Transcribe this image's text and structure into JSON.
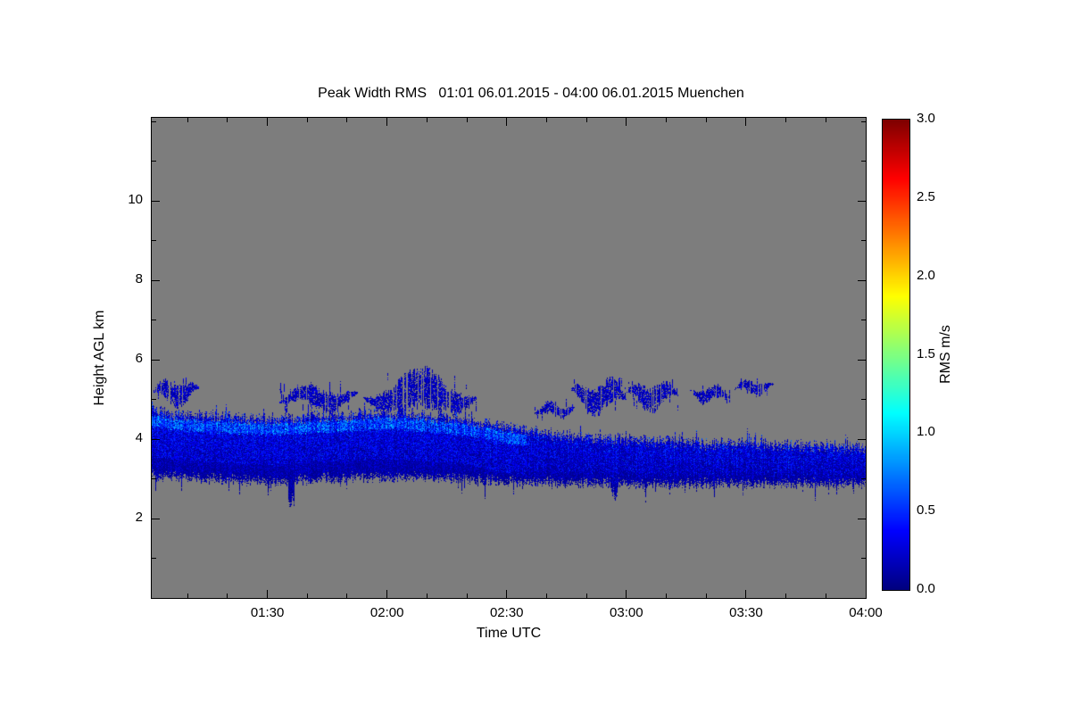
{
  "chart_data": {
    "type": "heatmap",
    "title": "Peak Width RMS   01:01 06.01.2015 - 04:00 06.01.2015 Muenchen",
    "xlabel": "Time UTC",
    "ylabel": "Height AGL km",
    "colorbar_label": "RMS m/s",
    "colormap": "jet",
    "nodata_color": "#7d7d7d",
    "frame_color": "#000000",
    "text_color": "#000000",
    "x_range": {
      "start_minutes": 61,
      "end_minutes": 240,
      "start_label": "01:01",
      "end_label": "04:00"
    },
    "x_major_ticks": [
      {
        "label": "01:30",
        "minutes": 90
      },
      {
        "label": "02:00",
        "minutes": 120
      },
      {
        "label": "02:30",
        "minutes": 150
      },
      {
        "label": "03:00",
        "minutes": 180
      },
      {
        "label": "03:30",
        "minutes": 210
      },
      {
        "label": "04:00",
        "minutes": 240
      }
    ],
    "x_minor_step_minutes": 10,
    "ylim": [
      0,
      12.1
    ],
    "y_major_ticks": [
      {
        "label": "2",
        "km": 2
      },
      {
        "label": "4",
        "km": 4
      },
      {
        "label": "6",
        "km": 6
      },
      {
        "label": "8",
        "km": 8
      },
      {
        "label": "10",
        "km": 10
      }
    ],
    "y_minor_step_km": 1,
    "colorbar": {
      "min": 0,
      "max": 3,
      "tick_labels": [
        "0.0",
        "0.5",
        "1.0",
        "1.5",
        "2.0",
        "2.5",
        "3.0"
      ],
      "unit": "m/s"
    },
    "layer_band": {
      "description": "Continuous low-RMS (dark blue, ~0.05-0.5 m/s) aerosol/cloud layer; ragged edges; brighter cyan line just below layer top before ~02:35; layer top descends from ~4.7 km to ~3.85 km after 02:30",
      "t_minutes": [
        61,
        70,
        80,
        90,
        100,
        110,
        120,
        130,
        140,
        150,
        160,
        170,
        180,
        190,
        200,
        210,
        220,
        230,
        240
      ],
      "bottom_km": [
        3.05,
        3.0,
        2.95,
        2.9,
        2.95,
        3.0,
        3.0,
        3.0,
        2.95,
        2.9,
        2.9,
        2.85,
        2.85,
        2.85,
        2.85,
        2.85,
        2.85,
        2.85,
        2.85
      ],
      "top_km": [
        4.75,
        4.65,
        4.6,
        4.55,
        4.6,
        4.65,
        4.7,
        4.65,
        4.55,
        4.35,
        4.2,
        4.1,
        4.05,
        4.0,
        3.95,
        3.95,
        3.9,
        3.9,
        3.85
      ],
      "typical_rms": [
        0.05,
        0.5
      ],
      "bright_line": {
        "t_end": 155,
        "offset_below_top_km": 0.3,
        "rms": [
          0.45,
          0.95
        ]
      },
      "downward_spikes": [
        {
          "minutes": 96,
          "to_km": 2.3
        },
        {
          "minutes": 177,
          "to_km": 2.45
        }
      ]
    },
    "upper_patches": [
      {
        "t0": 61,
        "t1": 73,
        "h0": 4.9,
        "h1": 5.5,
        "density": 0.5
      },
      {
        "t0": 93,
        "t1": 113,
        "h0": 4.75,
        "h1": 5.35,
        "density": 0.6
      },
      {
        "t0": 114,
        "t1": 143,
        "h0": 4.65,
        "h1": 5.6,
        "density": 0.75
      },
      {
        "t0": 157,
        "t1": 167,
        "h0": 4.55,
        "h1": 4.95,
        "density": 0.5
      },
      {
        "t0": 166,
        "t1": 180,
        "h0": 4.7,
        "h1": 5.5,
        "density": 0.7
      },
      {
        "t0": 180,
        "t1": 193,
        "h0": 4.8,
        "h1": 5.45,
        "density": 0.65
      },
      {
        "t0": 196,
        "t1": 206,
        "h0": 4.95,
        "h1": 5.35,
        "density": 0.55
      },
      {
        "t0": 207,
        "t1": 217,
        "h0": 5.15,
        "h1": 5.5,
        "density": 0.5
      }
    ],
    "patch_rms": [
      0.05,
      0.45
    ]
  }
}
